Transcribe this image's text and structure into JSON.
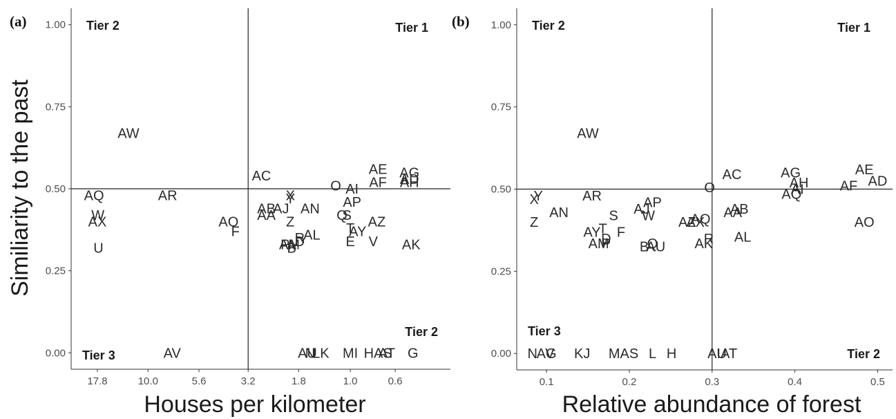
{
  "chart_data": [
    {
      "type": "scatter",
      "panel_label": "(a)",
      "xlabel": "Houses per kilometer",
      "ylabel": "Similiarity to the past",
      "x_tick_labels": [
        "17.8",
        "10.0",
        "5.6",
        "3.2",
        "1.8",
        "1.0",
        "0.6"
      ],
      "y_tick_labels": [
        "0.00",
        "0.25",
        "0.50",
        "0.75",
        "1.00"
      ],
      "y_ticks": [
        0,
        0.25,
        0.5,
        0.75,
        1.0
      ],
      "ylim": [
        -0.05,
        1.05
      ],
      "x_scale": "log",
      "x_reversed": true,
      "xlim": [
        24,
        0.32
      ],
      "reference_lines": {
        "x": 3.2,
        "y": 0.5
      },
      "grid": false,
      "tier_labels": [
        {
          "text": "Tier 2",
          "position": "top-left"
        },
        {
          "text": "Tier 1",
          "position": "top-right"
        },
        {
          "text": "Tier 2",
          "position": "bottom-right"
        },
        {
          "text": "Tier 3",
          "position": "bottom-left"
        }
      ],
      "points": [
        {
          "label": "AW",
          "x": 12.5,
          "y": 0.67
        },
        {
          "label": "AQ",
          "x": 18.5,
          "y": 0.48
        },
        {
          "label": "AR",
          "x": 8.0,
          "y": 0.48
        },
        {
          "label": "W",
          "x": 17.7,
          "y": 0.42
        },
        {
          "label": "AX",
          "x": 17.8,
          "y": 0.4
        },
        {
          "label": "U",
          "x": 17.6,
          "y": 0.32
        },
        {
          "label": "AO",
          "x": 4.0,
          "y": 0.4
        },
        {
          "label": "F",
          "x": 3.7,
          "y": 0.37
        },
        {
          "label": "AC",
          "x": 2.75,
          "y": 0.54
        },
        {
          "label": "AB",
          "x": 2.6,
          "y": 0.44
        },
        {
          "label": "AA",
          "x": 2.6,
          "y": 0.42
        },
        {
          "label": "AJ",
          "x": 2.2,
          "y": 0.44
        },
        {
          "label": "X",
          "x": 1.98,
          "y": 0.48
        },
        {
          "label": "Y",
          "x": 1.98,
          "y": 0.47
        },
        {
          "label": "Z",
          "x": 1.98,
          "y": 0.4
        },
        {
          "label": "AN",
          "x": 1.58,
          "y": 0.44
        },
        {
          "label": "P",
          "x": 2.1,
          "y": 0.33
        },
        {
          "label": "AM",
          "x": 2.0,
          "y": 0.33
        },
        {
          "label": "A",
          "x": 1.95,
          "y": 0.33
        },
        {
          "label": "B",
          "x": 1.95,
          "y": 0.32
        },
        {
          "label": "D",
          "x": 1.78,
          "y": 0.34
        },
        {
          "label": "R",
          "x": 1.78,
          "y": 0.35
        },
        {
          "label": "AL",
          "x": 1.55,
          "y": 0.36
        },
        {
          "label": "O",
          "x": 1.18,
          "y": 0.51
        },
        {
          "label": "AI",
          "x": 0.98,
          "y": 0.5
        },
        {
          "label": "AP",
          "x": 0.98,
          "y": 0.46
        },
        {
          "label": "Q",
          "x": 1.1,
          "y": 0.42
        },
        {
          "label": "S",
          "x": 1.04,
          "y": 0.42
        },
        {
          "label": "T",
          "x": 1.0,
          "y": 0.38
        },
        {
          "label": "AY",
          "x": 0.92,
          "y": 0.37
        },
        {
          "label": "E",
          "x": 1.0,
          "y": 0.34
        },
        {
          "label": "AZ",
          "x": 0.74,
          "y": 0.4
        },
        {
          "label": "V",
          "x": 0.77,
          "y": 0.34
        },
        {
          "label": "AE",
          "x": 0.73,
          "y": 0.56
        },
        {
          "label": "AF",
          "x": 0.73,
          "y": 0.52
        },
        {
          "label": "AG",
          "x": 0.51,
          "y": 0.55
        },
        {
          "label": "AD",
          "x": 0.51,
          "y": 0.53
        },
        {
          "label": "AH",
          "x": 0.51,
          "y": 0.52
        },
        {
          "label": "AK",
          "x": 0.5,
          "y": 0.33
        },
        {
          "label": "AV",
          "x": 7.6,
          "y": 0.0
        },
        {
          "label": "AU",
          "x": 1.63,
          "y": 0.0
        },
        {
          "label": "N",
          "x": 1.58,
          "y": 0.0
        },
        {
          "label": "LK",
          "x": 1.4,
          "y": 0.0
        },
        {
          "label": "MI",
          "x": 1.0,
          "y": 0.0
        },
        {
          "label": "HAS",
          "x": 0.73,
          "y": 0.0
        },
        {
          "label": "AT",
          "x": 0.66,
          "y": 0.0
        },
        {
          "label": "G",
          "x": 0.49,
          "y": 0.0
        }
      ]
    },
    {
      "type": "scatter",
      "panel_label": "(b)",
      "xlabel": "Relative abundance of forest",
      "ylabel": "",
      "x_tick_labels": [
        "0.1",
        "0.2",
        "0.3",
        "0.4",
        "0.5"
      ],
      "x_ticks": [
        0.1,
        0.2,
        0.3,
        0.4,
        0.5
      ],
      "y_tick_labels": [
        "0.00",
        "0.25",
        "0.50",
        "0.75",
        "1.00"
      ],
      "y_ticks": [
        0,
        0.25,
        0.5,
        0.75,
        1.0
      ],
      "xlim": [
        0.064,
        0.518
      ],
      "ylim": [
        -0.05,
        1.05
      ],
      "reference_lines": {
        "x": 0.3,
        "y": 0.5
      },
      "grid": false,
      "tier_labels": [
        {
          "text": "Tier 2",
          "position": "top-left"
        },
        {
          "text": "Tier 1",
          "position": "top-right"
        },
        {
          "text": "Tier 3",
          "position": "bottom-left"
        },
        {
          "text": "Tier 2",
          "position": "bottom-right"
        }
      ],
      "points": [
        {
          "label": "AW",
          "x": 0.15,
          "y": 0.67
        },
        {
          "label": "X",
          "x": 0.085,
          "y": 0.47
        },
        {
          "label": "Y",
          "x": 0.09,
          "y": 0.48
        },
        {
          "label": "Z",
          "x": 0.085,
          "y": 0.4
        },
        {
          "label": "AN",
          "x": 0.115,
          "y": 0.43
        },
        {
          "label": "AR",
          "x": 0.155,
          "y": 0.48
        },
        {
          "label": "S",
          "x": 0.181,
          "y": 0.42
        },
        {
          "label": "AY",
          "x": 0.155,
          "y": 0.37
        },
        {
          "label": "T",
          "x": 0.168,
          "y": 0.38
        },
        {
          "label": "F",
          "x": 0.19,
          "y": 0.37
        },
        {
          "label": "D",
          "x": 0.172,
          "y": 0.35
        },
        {
          "label": "AM",
          "x": 0.163,
          "y": 0.335
        },
        {
          "label": "P",
          "x": 0.172,
          "y": 0.335
        },
        {
          "label": "AJ",
          "x": 0.215,
          "y": 0.44
        },
        {
          "label": "AP",
          "x": 0.228,
          "y": 0.46
        },
        {
          "label": "W",
          "x": 0.223,
          "y": 0.42
        },
        {
          "label": "Q",
          "x": 0.228,
          "y": 0.335
        },
        {
          "label": "B",
          "x": 0.218,
          "y": 0.325
        },
        {
          "label": "AU",
          "x": 0.232,
          "y": 0.325
        },
        {
          "label": "AZ",
          "x": 0.27,
          "y": 0.4
        },
        {
          "label": "AX",
          "x": 0.28,
          "y": 0.4
        },
        {
          "label": "AQ",
          "x": 0.286,
          "y": 0.41
        },
        {
          "label": "R",
          "x": 0.296,
          "y": 0.35
        },
        {
          "label": "AK",
          "x": 0.29,
          "y": 0.335
        },
        {
          "label": "O",
          "x": 0.297,
          "y": 0.505
        },
        {
          "label": "AC",
          "x": 0.324,
          "y": 0.545
        },
        {
          "label": "AB",
          "x": 0.333,
          "y": 0.44
        },
        {
          "label": "AA",
          "x": 0.325,
          "y": 0.43
        },
        {
          "label": "AL",
          "x": 0.337,
          "y": 0.355
        },
        {
          "label": "AG",
          "x": 0.395,
          "y": 0.55
        },
        {
          "label": "AH",
          "x": 0.405,
          "y": 0.52
        },
        {
          "label": "AI",
          "x": 0.403,
          "y": 0.5
        },
        {
          "label": "AQ",
          "x": 0.396,
          "y": 0.485
        },
        {
          "label": "AE",
          "x": 0.484,
          "y": 0.56
        },
        {
          "label": "AD",
          "x": 0.5,
          "y": 0.525
        },
        {
          "label": "AF",
          "x": 0.465,
          "y": 0.51
        },
        {
          "label": "AO",
          "x": 0.484,
          "y": 0.4
        },
        {
          "label": "N",
          "x": 0.083,
          "y": 0.0
        },
        {
          "label": "AG",
          "x": 0.1,
          "y": 0.0
        },
        {
          "label": "V",
          "x": 0.104,
          "y": 0.0
        },
        {
          "label": "KJ",
          "x": 0.143,
          "y": 0.0
        },
        {
          "label": "MAS",
          "x": 0.193,
          "y": 0.0
        },
        {
          "label": "L",
          "x": 0.228,
          "y": 0.0
        },
        {
          "label": "H",
          "x": 0.251,
          "y": 0.0
        },
        {
          "label": "AU",
          "x": 0.306,
          "y": 0.0
        },
        {
          "label": "IAT",
          "x": 0.318,
          "y": 0.0
        }
      ]
    }
  ]
}
